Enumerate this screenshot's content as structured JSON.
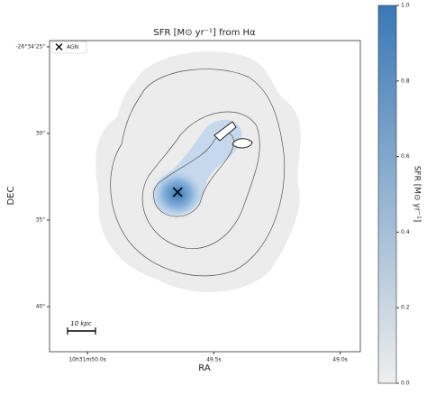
{
  "chart_data": {
    "type": "image",
    "title": "SFR [M⊙ yr⁻¹] from Hα",
    "xlabel": "RA",
    "ylabel": "DEC",
    "xlim": [
      50.15,
      48.92
    ],
    "xticks": [
      {
        "value": 50.0,
        "label": "10h31m50.0s"
      },
      {
        "value": 49.5,
        "label": "49.5s"
      },
      {
        "value": 49.0,
        "label": "49.0s"
      }
    ],
    "ylim": [
      42.6,
      24.64
    ],
    "yticks": [
      {
        "value": 25,
        "label": "-26°34'25\""
      },
      {
        "value": 30,
        "label": "30\""
      },
      {
        "value": 35,
        "label": "35\""
      },
      {
        "value": 40,
        "label": "40\""
      }
    ],
    "agn": {
      "name": "AGN",
      "x": 49.643,
      "y": 33.39,
      "color": "#000000"
    },
    "scale_bar": "10 kpc",
    "colorbar": {
      "label": "SFR [M⊙ yr⁻¹]",
      "colors": [
        "#eeeeee",
        "#3a78b5"
      ],
      "ylim": [
        0,
        1
      ],
      "yticks": [
        {
          "value": 0,
          "label": "0.0"
        },
        0.2,
        0.4,
        0.6,
        0.8,
        {
          "value": 1,
          "label": "1.0"
        }
      ]
    }
  }
}
